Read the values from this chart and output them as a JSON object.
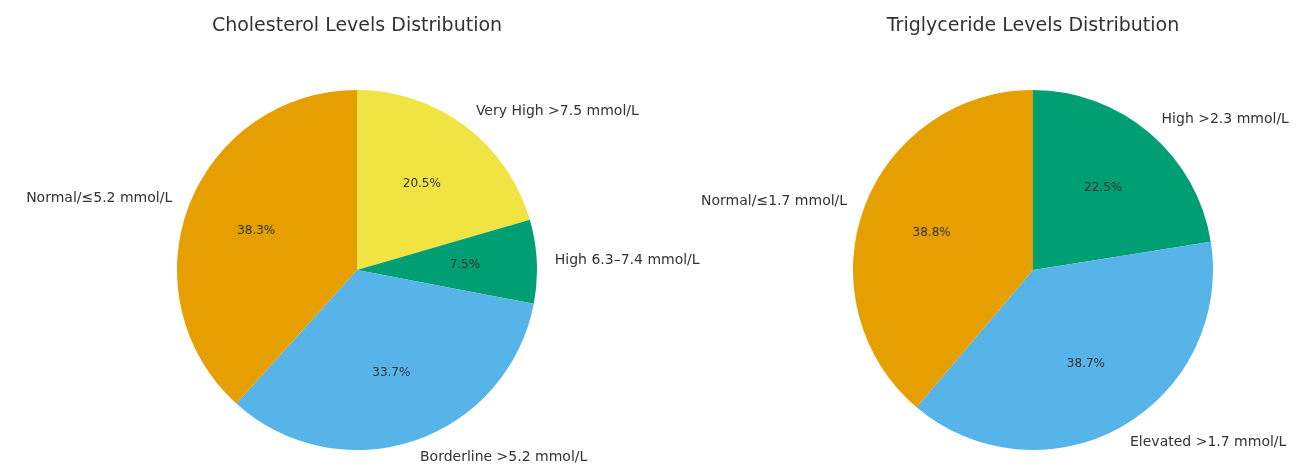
{
  "chart_data": [
    {
      "type": "pie",
      "title": "Cholesterol Levels Distribution",
      "categories": [
        "Very High >7.5 mmol/L",
        "High 6.3–7.4 mmol/L",
        "Borderline >5.2 mmol/L",
        "Normal/≤5.2 mmol/L"
      ],
      "values": [
        20.5,
        7.5,
        33.7,
        38.3
      ],
      "colors": [
        "#f0e442",
        "#009e73",
        "#56b4e9",
        "#e69f00"
      ],
      "value_labels": [
        "20.5%",
        "7.5%",
        "33.7%",
        "38.3%"
      ],
      "legend": false
    },
    {
      "type": "pie",
      "title": "Triglyceride Levels Distribution",
      "categories": [
        "High >2.3 mmol/L",
        "Elevated >1.7 mmol/L",
        "Normal/≤1.7 mmol/L"
      ],
      "values": [
        22.5,
        38.7,
        38.8
      ],
      "colors": [
        "#009e73",
        "#56b4e9",
        "#e69f00"
      ],
      "value_labels": [
        "22.5%",
        "38.7%",
        "38.8%"
      ],
      "legend": false
    }
  ]
}
